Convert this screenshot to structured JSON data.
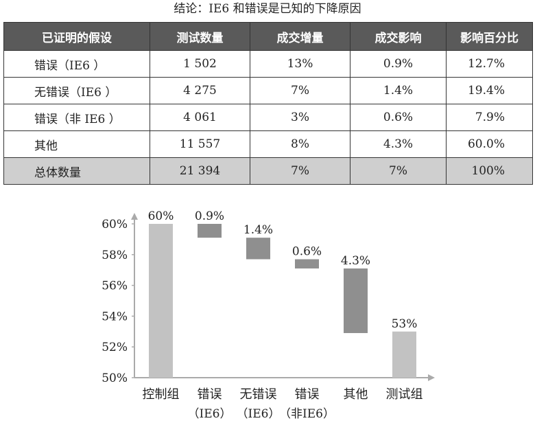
{
  "title": "结论：IE6 和错误是已知的下降原因",
  "table": {
    "headers": [
      "已证明的假设",
      "测试数量",
      "成交增量",
      "成交影响",
      "影响百分比"
    ],
    "rows": [
      [
        "错误（IE6 ）",
        "1 502",
        "13%",
        "0.9%",
        "12.7%"
      ],
      [
        "无错误（IE6 ）",
        "4 275",
        "7%",
        "1.4%",
        "19.4%"
      ],
      [
        "错误（非 IE6 ）",
        "4 061",
        "3%",
        "0.6%",
        "7.9%"
      ],
      [
        "其他",
        "11 557",
        "8%",
        "4.3%",
        "60.0%"
      ]
    ],
    "total": [
      "总体数量",
      "21 394",
      "7%",
      "7%",
      "100%"
    ]
  },
  "chart_data": {
    "type": "bar",
    "subtype": "waterfall",
    "ylim": [
      50,
      61
    ],
    "yticks": [
      "50%",
      "52%",
      "54%",
      "56%",
      "58%",
      "60%"
    ],
    "ytick_values": [
      50,
      52,
      54,
      56,
      58,
      60
    ],
    "grid": false,
    "categories": [
      {
        "line1": "控制组",
        "line2": ""
      },
      {
        "line1": "错误",
        "line2": "（IE6）"
      },
      {
        "line1": "无错误",
        "line2": "（IE6）"
      },
      {
        "line1": "错误",
        "line2": "（非IE6）"
      },
      {
        "line1": "其他",
        "line2": ""
      },
      {
        "line1": "测试组",
        "line2": ""
      }
    ],
    "bars": [
      {
        "start": 50,
        "end": 60,
        "label": "60%",
        "kind": "total"
      },
      {
        "start": 60,
        "end": 59.1,
        "label": "0.9%",
        "kind": "delta"
      },
      {
        "start": 59.1,
        "end": 57.7,
        "label": "1.4%",
        "kind": "delta"
      },
      {
        "start": 57.7,
        "end": 57.1,
        "label": "0.6%",
        "kind": "delta"
      },
      {
        "start": 57.1,
        "end": 52.9,
        "label": "4.3%",
        "kind": "delta"
      },
      {
        "start": 50,
        "end": 53,
        "label": "53%",
        "kind": "total"
      }
    ],
    "colors": {
      "total": "#c2c2c2",
      "delta": "#8f8f8f",
      "axis": "#aaaaaa"
    }
  }
}
